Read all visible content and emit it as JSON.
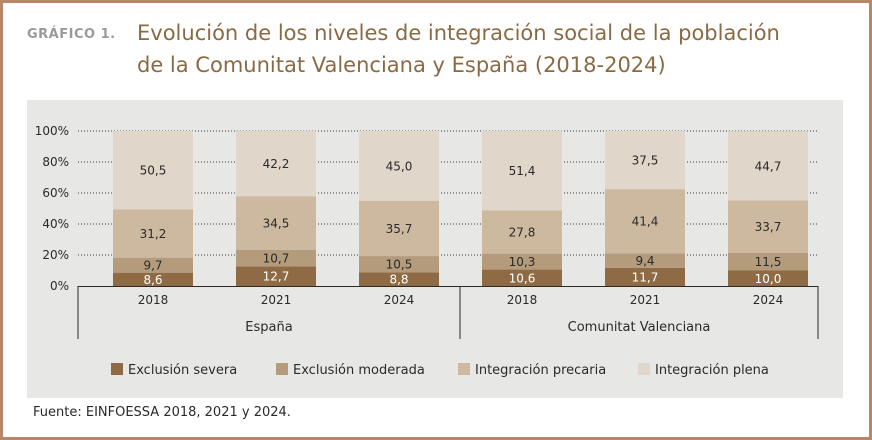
{
  "figure": {
    "label": "GRÁFICO 1.",
    "title_line1": "Evolución de los niveles de integración social de la población",
    "title_line2": "de la Comunitat Valenciana y España (2018-2024)",
    "source": "Fuente: EINFOESSA 2018, 2021 y 2024."
  },
  "colors": {
    "exclusion_severa": "#8f6b45",
    "exclusion_moderada": "#b39b7c",
    "integracion_precaria": "#cdb9a0",
    "integracion_plena": "#e0d6ca",
    "frame": "#b8876a",
    "chart_bg": "#e7e7e5"
  },
  "chart_data": {
    "type": "bar",
    "stacked": true,
    "percent": true,
    "groups": [
      {
        "name": "España",
        "categories": [
          "2018",
          "2021",
          "2024"
        ]
      },
      {
        "name": "Comunitat Valenciana",
        "categories": [
          "2018",
          "2021",
          "2024"
        ]
      }
    ],
    "categories": [
      "2018",
      "2021",
      "2024",
      "2018",
      "2021",
      "2024"
    ],
    "series": [
      {
        "name": "Exclusión severa",
        "values": [
          8.6,
          12.7,
          8.8,
          10.6,
          11.7,
          10.0
        ],
        "labels": [
          "8,6",
          "12,7",
          "8,8",
          "10,6",
          "11,7",
          "10,0"
        ]
      },
      {
        "name": "Exclusión moderada",
        "values": [
          9.7,
          10.7,
          10.5,
          10.3,
          9.4,
          11.5
        ],
        "labels": [
          "9,7",
          "10,7",
          "10,5",
          "10,3",
          "9,4",
          "11,5"
        ]
      },
      {
        "name": "Integración precaria",
        "values": [
          31.2,
          34.5,
          35.7,
          27.8,
          41.4,
          33.7
        ],
        "labels": [
          "31,2",
          "34,5",
          "35,7",
          "27,8",
          "41,4",
          "33,7"
        ]
      },
      {
        "name": "Integración plena",
        "values": [
          50.5,
          42.2,
          45.0,
          51.4,
          37.5,
          44.7
        ],
        "labels": [
          "50,5",
          "42,2",
          "45,0",
          "51,4",
          "37,5",
          "44,7"
        ]
      }
    ],
    "yticks": [
      "0%",
      "20%",
      "40%",
      "60%",
      "80%",
      "100%"
    ],
    "ylim": [
      0,
      100
    ],
    "grid": true,
    "legend_position": "bottom"
  }
}
